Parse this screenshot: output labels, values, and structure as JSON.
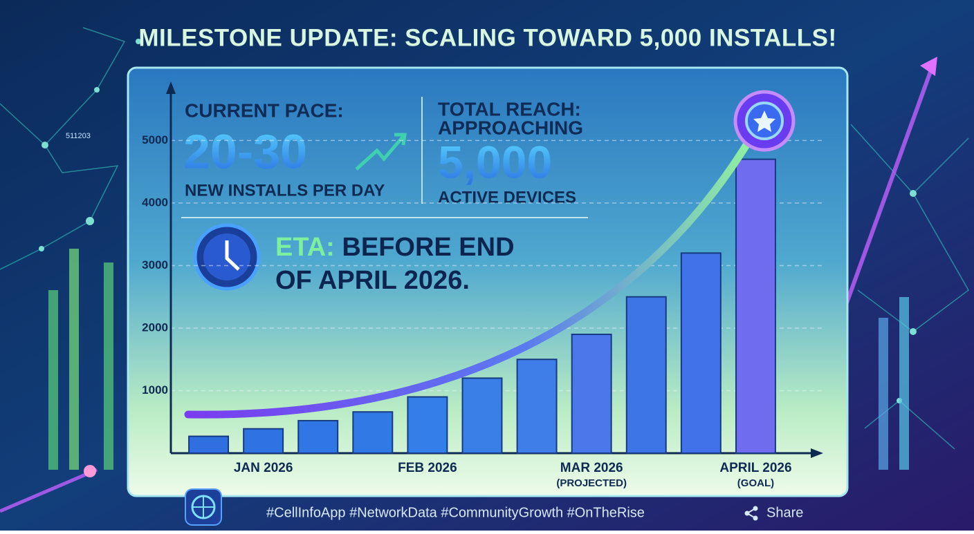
{
  "title": "MILESTONE UPDATE: SCALING TOWARD 5,000 INSTALLS!",
  "stats": {
    "pace_label": "CURRENT PACE:",
    "pace_value": "20-30",
    "pace_unit": "NEW INSTALLS PER DAY",
    "reach_label": "TOTAL REACH:",
    "reach_prefix": "APPROACHING",
    "reach_value": "5,000",
    "reach_unit": "ACTIVE DEVICES",
    "eta_prefix": "ETA:",
    "eta_line1": "BEFORE END",
    "eta_line2": "OF APRIL 2026."
  },
  "chart_data": {
    "type": "bar",
    "categories": [
      null,
      "JAN 2026",
      null,
      null,
      "FEB 2026",
      null,
      null,
      "MAR 2026",
      null,
      null,
      "APRIL 2026"
    ],
    "category_notes": [
      null,
      null,
      null,
      null,
      null,
      null,
      null,
      "(PROJECTED)",
      null,
      null,
      "(GOAL)"
    ],
    "values": [
      270,
      390,
      520,
      660,
      900,
      1200,
      1500,
      1900,
      2500,
      3200,
      4700
    ],
    "colors": [
      "#2f6fe0",
      "#2f72e2",
      "#3076e4",
      "#317ae6",
      "#337ee8",
      "#3a7fe8",
      "#3f7ee9",
      "#4a78ea",
      "#3d74e6",
      "#4172ea",
      "#6f6cf0"
    ],
    "ylim": [
      0,
      5800
    ],
    "yticks": [
      1000,
      2000,
      3000,
      4000,
      5000
    ],
    "grid": true
  },
  "footer": {
    "hashtags": "#CellInfoApp #NetworkData #CommunityGrowth #OnTheRise",
    "share": "Share"
  },
  "decor": {
    "code": "511203"
  }
}
